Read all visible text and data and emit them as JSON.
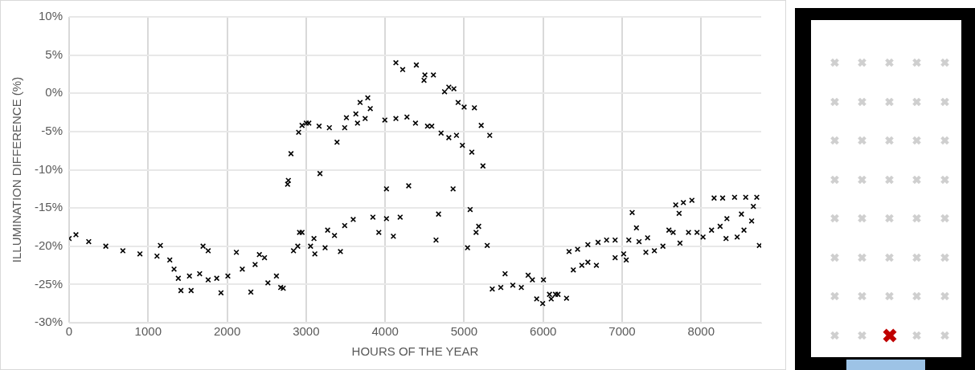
{
  "chart_data": {
    "type": "scatter",
    "xlabel": "HOURS OF THE YEAR",
    "ylabel": "ILLUMINATION DIFFERENCE (%)",
    "xlim": [
      0,
      8760
    ],
    "xticks": [
      0,
      1000,
      2000,
      3000,
      4000,
      5000,
      6000,
      7000,
      8000
    ],
    "ylim": [
      -30,
      10
    ],
    "yticks": [
      {
        "value": -30,
        "label": "-30%"
      },
      {
        "value": -25,
        "label": "-25%"
      },
      {
        "value": -20,
        "label": "-20%"
      },
      {
        "value": -15,
        "label": "-15%"
      },
      {
        "value": -10,
        "label": "-10%"
      },
      {
        "value": -5,
        "label": "-5%"
      },
      {
        "value": 0,
        "label": "0%"
      },
      {
        "value": 5,
        "label": "5%"
      },
      {
        "value": 10,
        "label": "10%"
      }
    ],
    "grid": true,
    "legend": false,
    "marker": "cross",
    "series": [
      {
        "color": "#000000",
        "x": [
          0,
          86,
          248,
          464,
          680,
          896,
          1112,
          1155,
          1274,
          1328,
          1382,
          1415,
          1544,
          1523,
          1652,
          1695,
          1760,
          1760,
          1868,
          1922,
          2009,
          2117,
          2192,
          2300,
          2354,
          2408,
          2473,
          2516,
          2624,
          2678,
          2710,
          2765,
          2775,
          2808,
          2840,
          2894,
          2916,
          2905,
          2948,
          3002,
          3034,
          3164,
          3294,
          3391,
          3175,
          3488,
          3510,
          3629,
          3683,
          3780,
          3812,
          3747,
          3650,
          3996,
          4136,
          4276,
          4384,
          4536,
          4590,
          4136,
          4222,
          4395,
          4503,
          4611,
          4492,
          4752,
          4806,
          4870,
          4924,
          5000,
          5130,
          5216,
          5324,
          4708,
          4806,
          4903,
          4978,
          5097,
          5238,
          4017,
          4298,
          4860,
          5076,
          5184,
          5151,
          5043,
          5292,
          4644,
          4676,
          4190,
          4104,
          4017,
          3920,
          3845,
          3596,
          3488,
          3434,
          3359,
          3272,
          3240,
          3110,
          3099,
          3056,
          2948,
          5356,
          5464,
          5518,
          5616,
          5724,
          5810,
          5864,
          6004,
          5918,
          5994,
          6102,
          6156,
          6080,
          6188,
          6296,
          6328,
          6436,
          6382,
          6490,
          6566,
          6674,
          6566,
          6695,
          6803,
          6911,
          6911,
          7019,
          7052,
          7084,
          7127,
          7181,
          7214,
          7322,
          7300,
          7408,
          7516,
          7592,
          7646,
          7678,
          7721,
          7732,
          7775,
          7883,
          7840,
          7948,
          8024,
          8132,
          8164,
          8272,
          8240,
          8326,
          8315,
          8423,
          8456,
          8510,
          8542,
          8564,
          8639,
          8661,
          8704,
          8737
        ],
        "values": [
          -19.0,
          -18.5,
          -19.4,
          -20.0,
          -20.6,
          -21.0,
          -21.3,
          -19.9,
          -21.8,
          -23.0,
          -24.2,
          -25.8,
          -25.8,
          -23.9,
          -23.6,
          -20.0,
          -20.6,
          -24.4,
          -24.2,
          -26.1,
          -23.9,
          -20.8,
          -23.0,
          -26.0,
          -22.4,
          -21.1,
          -21.5,
          -24.8,
          -23.9,
          -25.4,
          -25.5,
          -11.9,
          -11.4,
          -7.9,
          -20.6,
          -20.0,
          -18.2,
          -5.1,
          -4.2,
          -3.9,
          -3.9,
          -4.3,
          -4.5,
          -6.4,
          -10.5,
          -4.5,
          -3.2,
          -2.7,
          -1.2,
          -0.6,
          -2.0,
          -3.3,
          -3.9,
          -3.5,
          -3.3,
          -3.1,
          -3.9,
          -4.3,
          -4.3,
          4.0,
          3.1,
          3.7,
          2.4,
          2.4,
          1.7,
          0.2,
          0.8,
          0.6,
          -1.2,
          -1.8,
          -1.9,
          -4.2,
          -5.5,
          -5.2,
          -5.8,
          -5.5,
          -6.8,
          -7.7,
          -9.5,
          -12.5,
          -12.1,
          -12.5,
          -15.2,
          -17.4,
          -18.2,
          -20.2,
          -19.9,
          -19.2,
          -15.8,
          -16.2,
          -18.7,
          -16.4,
          -18.2,
          -16.2,
          -16.5,
          -17.3,
          -20.7,
          -18.6,
          -17.9,
          -20.2,
          -21.0,
          -19.0,
          -20.0,
          -18.2,
          -25.6,
          -25.4,
          -23.6,
          -25.1,
          -25.4,
          -23.8,
          -24.4,
          -24.4,
          -26.9,
          -27.5,
          -26.9,
          -26.3,
          -26.3,
          -26.3,
          -26.8,
          -20.7,
          -20.4,
          -23.1,
          -22.5,
          -22.1,
          -22.5,
          -19.8,
          -19.5,
          -19.2,
          -19.2,
          -21.5,
          -21.0,
          -21.8,
          -19.2,
          -15.6,
          -17.6,
          -19.4,
          -18.9,
          -20.8,
          -20.6,
          -20.0,
          -17.9,
          -18.2,
          -14.6,
          -15.7,
          -19.6,
          -14.3,
          -14.0,
          -18.2,
          -18.2,
          -18.8,
          -17.9,
          -13.7,
          -13.7,
          -17.4,
          -16.4,
          -19.0,
          -13.6,
          -18.8,
          -15.8,
          -17.9,
          -13.6,
          -16.7,
          -14.8,
          -13.6,
          -19.9
        ]
      }
    ]
  }
}
